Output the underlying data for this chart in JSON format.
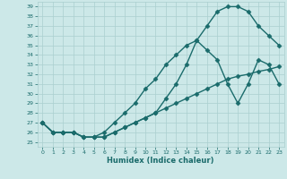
{
  "xlabel": "Humidex (Indice chaleur)",
  "ylabel": "",
  "bg_color": "#cce8e8",
  "grid_color": "#aacfcf",
  "line_color": "#1a6b6b",
  "xlim": [
    -0.5,
    23.5
  ],
  "ylim": [
    24.5,
    39.5
  ],
  "xticks": [
    0,
    1,
    2,
    3,
    4,
    5,
    6,
    7,
    8,
    9,
    10,
    11,
    12,
    13,
    14,
    15,
    16,
    17,
    18,
    19,
    20,
    21,
    22,
    23
  ],
  "yticks": [
    25,
    26,
    27,
    28,
    29,
    30,
    31,
    32,
    33,
    34,
    35,
    36,
    37,
    38,
    39
  ],
  "line1_x": [
    0,
    1,
    2,
    3,
    4,
    5,
    6,
    7,
    8,
    9,
    10,
    11,
    12,
    13,
    14,
    15,
    16,
    17,
    18,
    19,
    20,
    21,
    22,
    23
  ],
  "line1_y": [
    27,
    26,
    26,
    26,
    25.5,
    25.5,
    25.5,
    26,
    26.5,
    27,
    27.5,
    28,
    28.5,
    29,
    29.5,
    30,
    30.5,
    31,
    31.5,
    31.8,
    32,
    32.3,
    32.5,
    32.8
  ],
  "line2_x": [
    0,
    1,
    2,
    3,
    4,
    5,
    6,
    7,
    8,
    9,
    10,
    11,
    12,
    13,
    14,
    15,
    16,
    17,
    18,
    19,
    20,
    21,
    22,
    23
  ],
  "line2_y": [
    27,
    26,
    26,
    26,
    25.5,
    25.5,
    26,
    27,
    28,
    29,
    30.5,
    31.5,
    33,
    34,
    35,
    35.5,
    34.5,
    33.5,
    31,
    29,
    31,
    33.5,
    33,
    31
  ],
  "line3_x": [
    0,
    1,
    2,
    3,
    4,
    5,
    6,
    7,
    8,
    9,
    10,
    11,
    12,
    13,
    14,
    15,
    16,
    17,
    18,
    19,
    20,
    21,
    22,
    23
  ],
  "line3_y": [
    27,
    26,
    26,
    26,
    25.5,
    25.5,
    25.5,
    26,
    26.5,
    27,
    27.5,
    28,
    29.5,
    31,
    33,
    35.5,
    37,
    38.5,
    39,
    39,
    38.5,
    37,
    36,
    35
  ],
  "marker": "D",
  "markersize": 2.5,
  "linewidth": 1.0
}
